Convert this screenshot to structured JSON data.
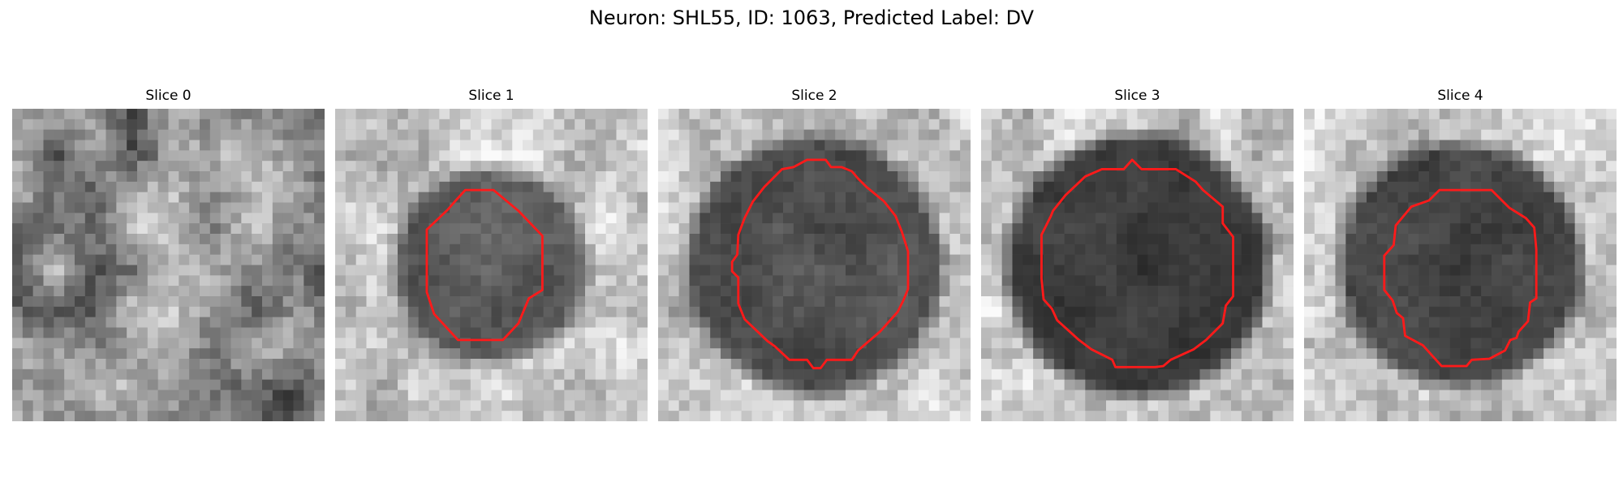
{
  "figure": {
    "title": "Neuron: SHL55, ID: 1063, Predicted Label: DV"
  },
  "colors": {
    "contour": "#ff1a1a",
    "background": "#ffffff"
  },
  "slices": [
    {
      "label": "Slice 0",
      "has_contour": false,
      "cell_darkness": 0.0,
      "cell_radius": 0.0
    },
    {
      "label": "Slice 1",
      "has_contour": true,
      "cell_darkness": 0.55,
      "cell_radius": 0.31
    },
    {
      "label": "Slice 2",
      "has_contour": true,
      "cell_darkness": 0.6,
      "cell_radius": 0.41
    },
    {
      "label": "Slice 3",
      "has_contour": true,
      "cell_darkness": 0.7,
      "cell_radius": 0.42
    },
    {
      "label": "Slice 4",
      "has_contour": true,
      "cell_darkness": 0.65,
      "cell_radius": 0.39
    }
  ]
}
